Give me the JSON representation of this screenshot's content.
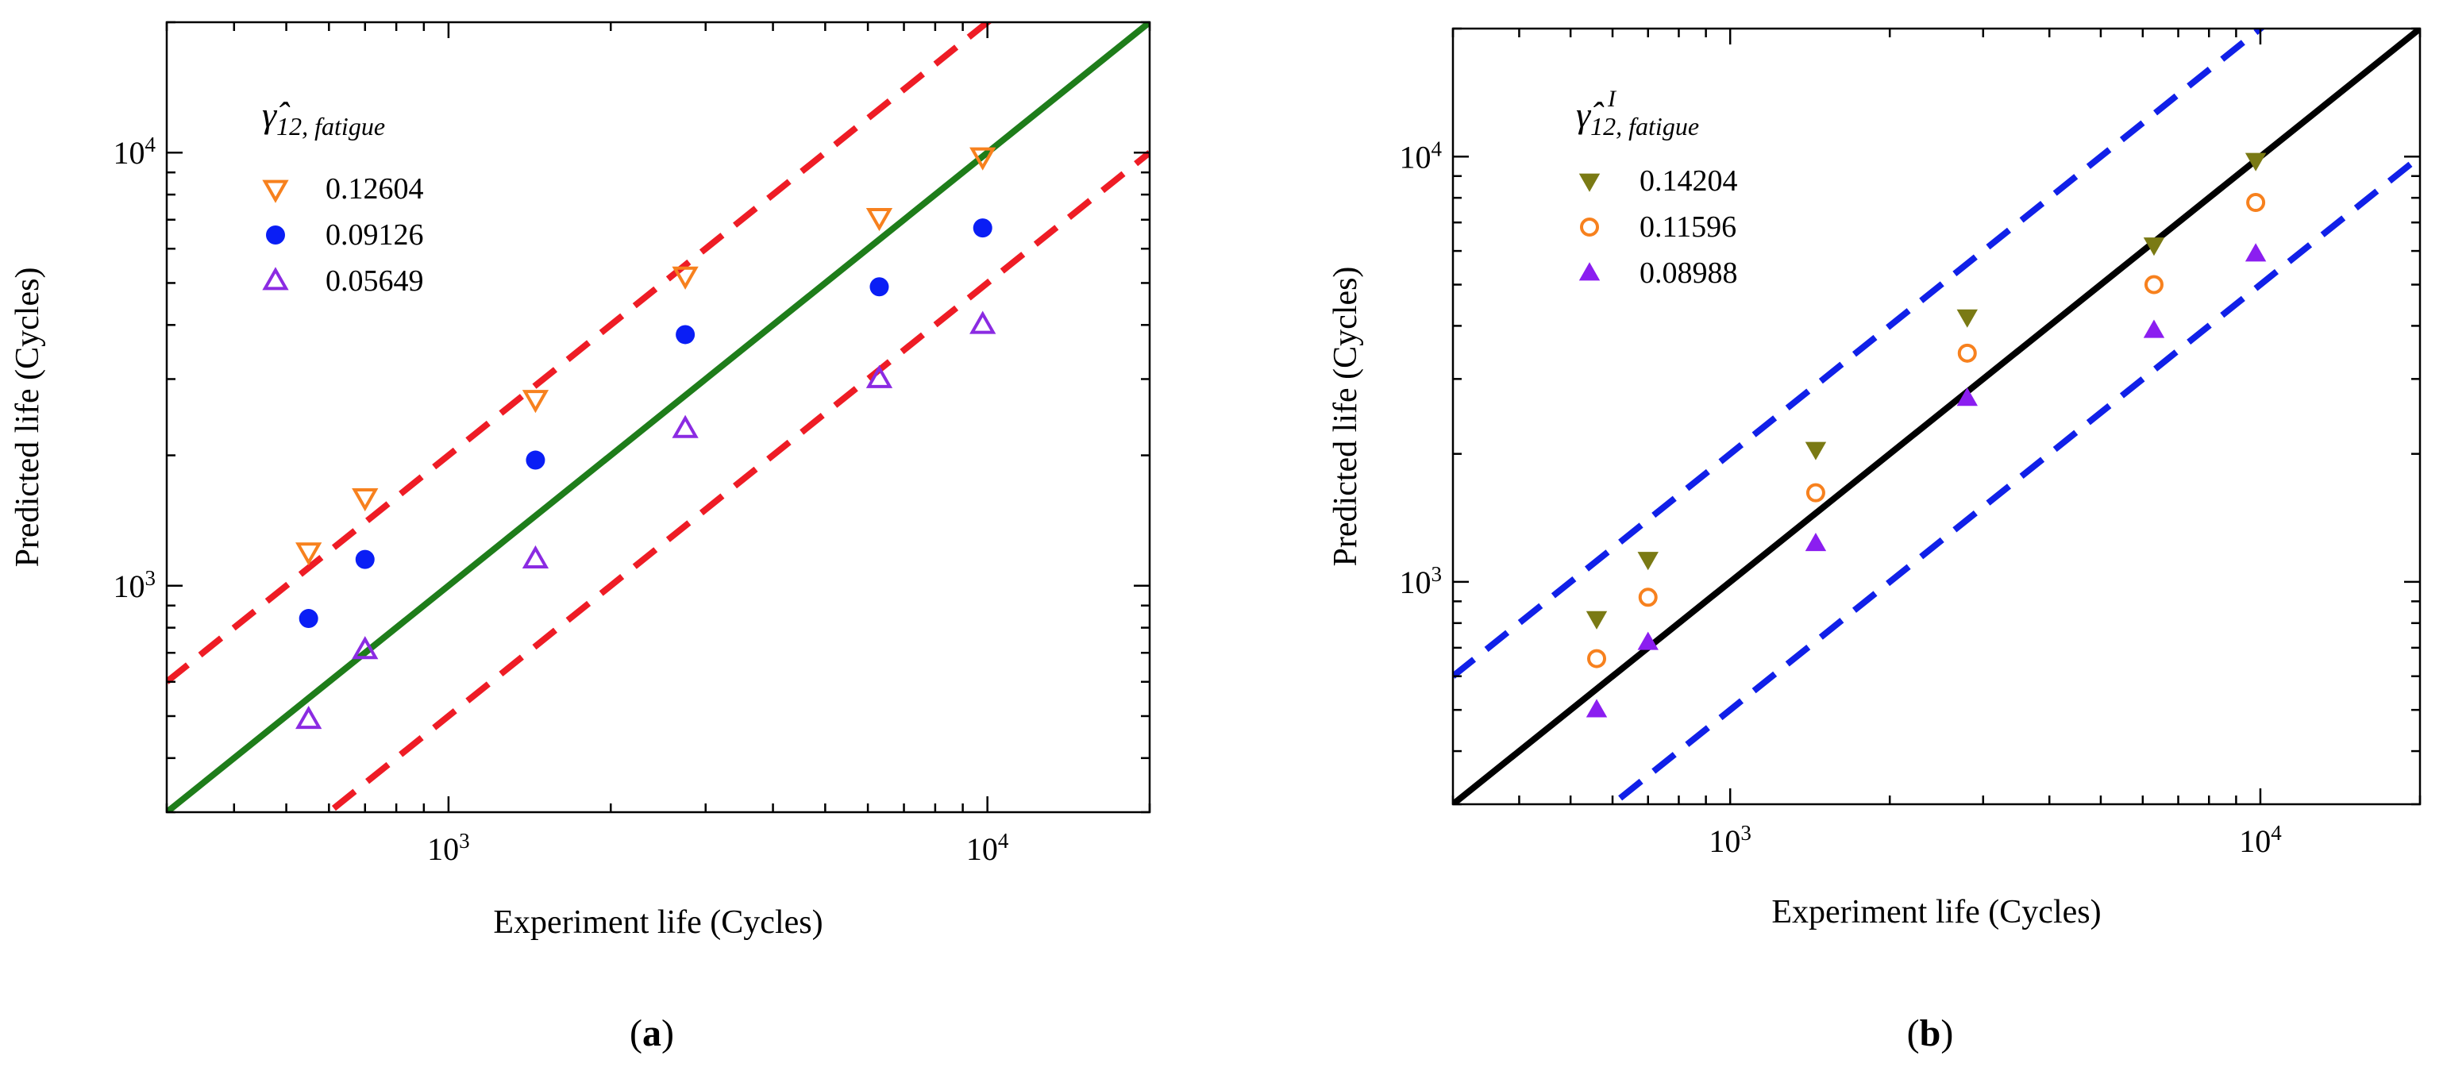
{
  "chart_data": [
    {
      "type": "scatter",
      "panel_label": "(a)",
      "panel_letter": "a",
      "xlabel": "Experiment life (Cycles)",
      "ylabel": "Predicted life (Cycles)",
      "xscale": "log",
      "yscale": "log",
      "xlim": [
        300,
        20000
      ],
      "ylim": [
        300,
        20000
      ],
      "x_ticks": [
        {
          "value": 1000,
          "base": "10",
          "exp": "3"
        },
        {
          "value": 10000,
          "base": "10",
          "exp": "4"
        }
      ],
      "y_ticks": [
        {
          "value": 1000,
          "base": "10",
          "exp": "3"
        },
        {
          "value": 10000,
          "base": "10",
          "exp": "4"
        }
      ],
      "legend_title_main": "γ̂",
      "legend_title_sub": "12, fatigue",
      "legend_title_sup": "",
      "legend_position": "top-left",
      "reference_lines": [
        {
          "name": "1:1",
          "factor": 1,
          "style": "solid",
          "color": "#1e7d1a"
        },
        {
          "name": "factor 2 upper",
          "factor": 2,
          "style": "dashed",
          "color": "#ee1c25"
        },
        {
          "name": "factor 2 lower",
          "factor": 0.5,
          "style": "dashed",
          "color": "#ee1c25"
        }
      ],
      "series": [
        {
          "name": "0.12604",
          "marker": "triangle-down-open",
          "color": "#f7811e",
          "points": [
            [
              550,
              1200
            ],
            [
              700,
              1600
            ],
            [
              1450,
              2700
            ],
            [
              2750,
              5200
            ],
            [
              6300,
              7100
            ],
            [
              9800,
              9800
            ]
          ]
        },
        {
          "name": "0.09126",
          "marker": "circle-filled",
          "color": "#0a1ef5",
          "points": [
            [
              550,
              840
            ],
            [
              700,
              1150
            ],
            [
              1450,
              1950
            ],
            [
              2750,
              3800
            ],
            [
              6300,
              4900
            ],
            [
              9800,
              6700
            ]
          ]
        },
        {
          "name": "0.05649",
          "marker": "triangle-up-open",
          "color": "#8b2be2",
          "points": [
            [
              550,
              490
            ],
            [
              700,
              710
            ],
            [
              1450,
              1150
            ],
            [
              2750,
              2300
            ],
            [
              6300,
              3000
            ],
            [
              9800,
              4000
            ]
          ]
        }
      ]
    },
    {
      "type": "scatter",
      "panel_label": "(b)",
      "panel_letter": "b",
      "xlabel": "Experiment life (Cycles)",
      "ylabel": "Predicted life (Cycles)",
      "xscale": "log",
      "yscale": "log",
      "xlim": [
        300,
        20000
      ],
      "ylim": [
        300,
        20000
      ],
      "x_ticks": [
        {
          "value": 1000,
          "base": "10",
          "exp": "3"
        },
        {
          "value": 10000,
          "base": "10",
          "exp": "4"
        }
      ],
      "y_ticks": [
        {
          "value": 1000,
          "base": "10",
          "exp": "3"
        },
        {
          "value": 10000,
          "base": "10",
          "exp": "4"
        }
      ],
      "legend_title_main": "γ̂",
      "legend_title_sub": "12, fatigue",
      "legend_title_sup": "I",
      "legend_position": "top-left",
      "reference_lines": [
        {
          "name": "1:1",
          "factor": 1,
          "style": "solid",
          "color": "#000000"
        },
        {
          "name": "factor 2 upper",
          "factor": 2,
          "style": "dashed",
          "color": "#1020e8"
        },
        {
          "name": "factor 2 lower",
          "factor": 0.5,
          "style": "dashed",
          "color": "#1020e8"
        }
      ],
      "series": [
        {
          "name": "0.14204",
          "marker": "triangle-down-filled",
          "color": "#7a7a14",
          "points": [
            [
              560,
              820
            ],
            [
              700,
              1130
            ],
            [
              1450,
              2050
            ],
            [
              2800,
              4200
            ],
            [
              6300,
              6200
            ],
            [
              9800,
              9800
            ]
          ]
        },
        {
          "name": "0.11596",
          "marker": "circle-open",
          "color": "#f7811e",
          "points": [
            [
              560,
              660
            ],
            [
              700,
              920
            ],
            [
              1450,
              1620
            ],
            [
              2800,
              3450
            ],
            [
              6300,
              5000
            ],
            [
              9800,
              7800
            ]
          ]
        },
        {
          "name": "0.08988",
          "marker": "triangle-up-filled",
          "color": "#8b1ef0",
          "points": [
            [
              560,
              500
            ],
            [
              700,
              720
            ],
            [
              1450,
              1230
            ],
            [
              2800,
              2700
            ],
            [
              6300,
              3900
            ],
            [
              9800,
              5900
            ]
          ]
        }
      ]
    }
  ]
}
